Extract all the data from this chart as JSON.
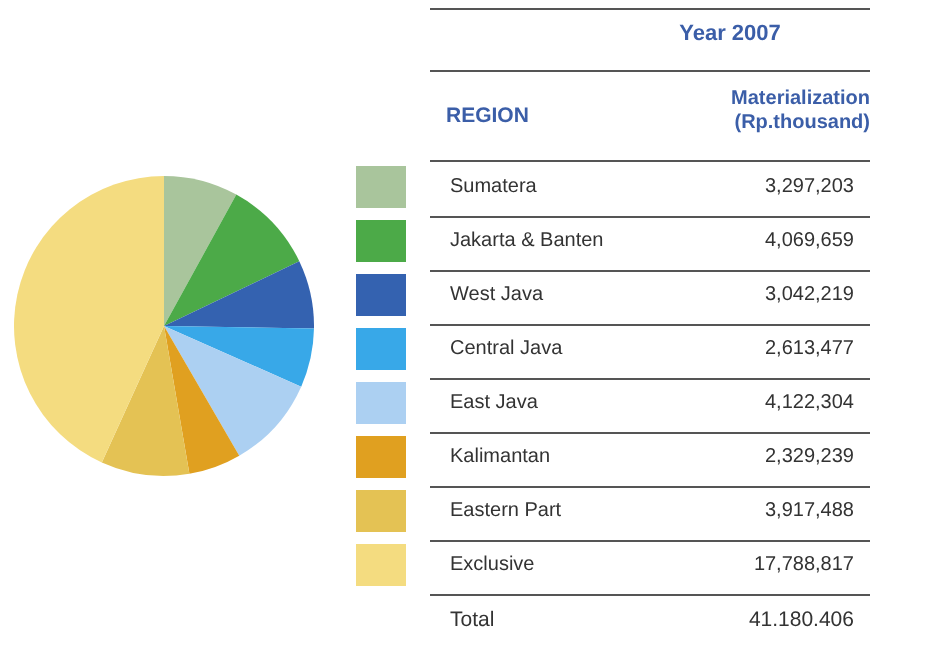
{
  "chart_data": {
    "type": "pie",
    "title": "Year 2007",
    "legend_title": "REGION",
    "subtitle": "Materialization (Rp.thousand)",
    "categories": [
      "Sumatera",
      "Jakarta & Banten",
      "West Java",
      "Central Java",
      "East Java",
      "Kalimantan",
      "Eastern Part",
      "Exclusive"
    ],
    "values": [
      3297203,
      4069659,
      3042219,
      2613477,
      4122304,
      2329239,
      3917488,
      17788817
    ],
    "colors": [
      "#a9c59c",
      "#4caa48",
      "#3462b0",
      "#38a8e8",
      "#acd0f2",
      "#e0a020",
      "#e4c254",
      "#f4dc80"
    ],
    "value_labels": [
      "3,297,203",
      "4,069,659",
      "3,042,219",
      "2,613,477",
      "4,122,304",
      "2,329,239",
      "3,917,488",
      "17,788,817"
    ],
    "legend": "right",
    "annotations": [
      "Total",
      "41.180.406"
    ]
  }
}
